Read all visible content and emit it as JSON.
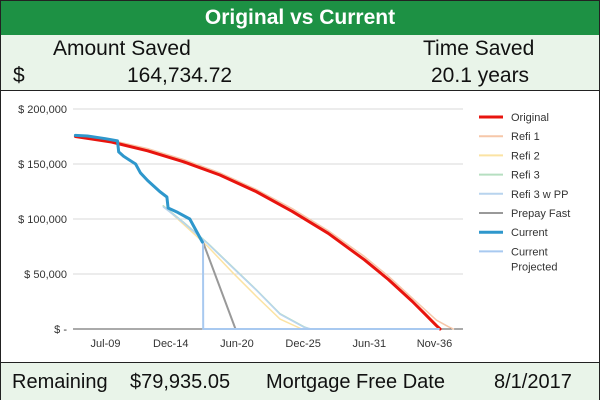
{
  "header": {
    "title": "Original vs Current"
  },
  "summary": {
    "amount_label": "Amount Saved",
    "time_label": "Time Saved",
    "currency_symbol": "$",
    "amount_value": "164,734.72",
    "time_value": "20.1 years"
  },
  "footer": {
    "remaining_label": "Remaining",
    "remaining_value": "$79,935.05",
    "free_date_label": "Mortgage Free Date",
    "free_date_value": "8/1/2017"
  },
  "colors": {
    "title_bg": "#1d9144",
    "panel_bg": "#e9f4e9"
  },
  "chart_data": {
    "type": "line",
    "y_ticks": [
      {
        "value": 0,
        "label": "$ -"
      },
      {
        "value": 50000,
        "label": "$ 50,000"
      },
      {
        "value": 100000,
        "label": "$ 100,000"
      },
      {
        "value": 150000,
        "label": "$ 150,000"
      },
      {
        "value": 200000,
        "label": "$ 200,000"
      }
    ],
    "x_ticks": [
      {
        "value": 2009.5,
        "label": "Jul-09"
      },
      {
        "value": 2014.92,
        "label": "Dec-14"
      },
      {
        "value": 2020.42,
        "label": "Jun-20"
      },
      {
        "value": 2025.92,
        "label": "Dec-25"
      },
      {
        "value": 2031.42,
        "label": "Jun-31"
      },
      {
        "value": 2036.83,
        "label": "Nov-36"
      }
    ],
    "xlim": [
      2006.8,
      2039.2
    ],
    "ylim": [
      0,
      200000
    ],
    "grid": true,
    "legend_position": "right",
    "series": [
      {
        "name": "Original",
        "color": "#e8140e",
        "width": 3,
        "x": [
          2007,
          2010,
          2013,
          2016,
          2019,
          2022,
          2025,
          2028,
          2031,
          2033,
          2035,
          2036,
          2037,
          2037.3
        ],
        "y": [
          175000,
          170000,
          162000,
          152000,
          140000,
          125000,
          107000,
          87000,
          63000,
          45000,
          25000,
          14000,
          3000,
          0
        ]
      },
      {
        "name": "Refi 1",
        "color": "#f6c7a9",
        "width": 1.5,
        "x": [
          2007,
          2010,
          2013,
          2016,
          2019,
          2022,
          2025,
          2028,
          2031,
          2033,
          2035,
          2037,
          2038,
          2038.4
        ],
        "y": [
          176000,
          171500,
          164000,
          154000,
          142000,
          127000,
          109500,
          89500,
          66000,
          48000,
          28000,
          8000,
          2000,
          0
        ]
      },
      {
        "name": "Refi 2",
        "color": "#fbe3a3",
        "width": 1.5,
        "x": [
          2014.3,
          2016,
          2018,
          2020,
          2022,
          2024,
          2025.8
        ],
        "y": [
          112000,
          95000,
          75000,
          52000,
          30000,
          9000,
          0
        ]
      },
      {
        "name": "Refi 3",
        "color": "#b6dfc1",
        "width": 1.5,
        "x": [
          2014.3,
          2016,
          2018,
          2020,
          2022,
          2024,
          2026,
          2026.5
        ],
        "y": [
          112000,
          97000,
          78000,
          57000,
          36000,
          14000,
          2000,
          0
        ]
      },
      {
        "name": "Refi 3 w PP",
        "color": "#b8d4ee",
        "width": 1.5,
        "x": [
          2014.3,
          2016,
          2018,
          2020,
          2022,
          2024,
          2026,
          2026.6
        ],
        "y": [
          111000,
          96500,
          77500,
          56500,
          35500,
          13500,
          1500,
          0
        ]
      },
      {
        "name": "Prepay Fast",
        "color": "#999999",
        "width": 2,
        "x": [
          2017.6,
          2020.3
        ],
        "y": [
          79000,
          0
        ]
      },
      {
        "name": "Current",
        "color": "#2e97cc",
        "width": 3,
        "x": [
          2007,
          2008,
          2009.5,
          2010.5,
          2010.6,
          2011,
          2012,
          2012.4,
          2013,
          2014,
          2014.6,
          2014.7,
          2015.5,
          2016.5,
          2017.55
        ],
        "y": [
          176000,
          175500,
          173000,
          171000,
          161000,
          157000,
          150000,
          142000,
          135000,
          125000,
          120000,
          110000,
          106000,
          100000,
          79000
        ]
      },
      {
        "name": "Current Projected",
        "color": "#a8c9f0",
        "width": 2,
        "x": [
          2017.6,
          2017.62,
          2026.5,
          2037.2
        ],
        "y": [
          79000,
          0,
          0,
          0
        ]
      }
    ]
  }
}
